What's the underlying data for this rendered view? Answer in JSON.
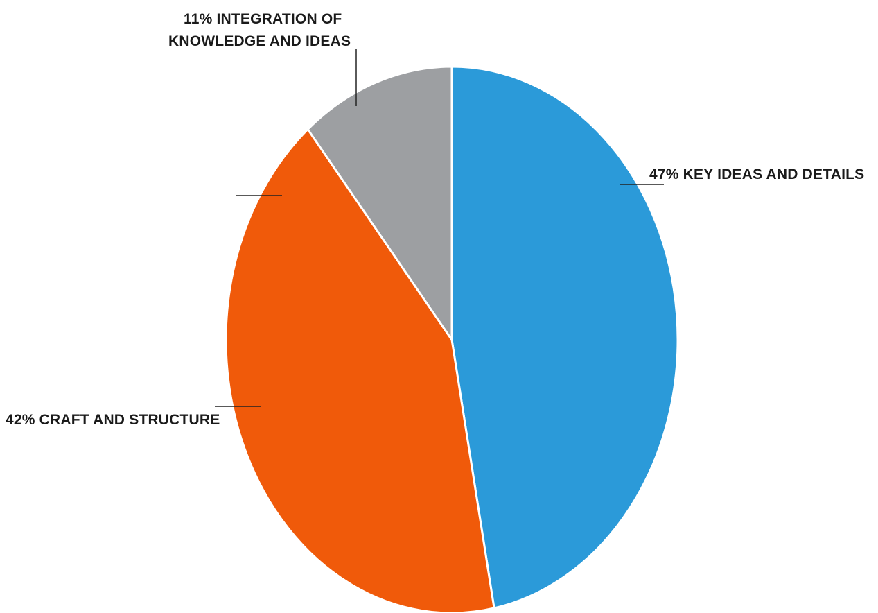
{
  "chart_data": {
    "type": "pie",
    "title": "",
    "slices": [
      {
        "label": "KEY IDEAS AND DETAILS",
        "percent_label": "47%",
        "value": 47,
        "color": "#2b9ad9"
      },
      {
        "label": "CRAFT AND STRUCTURE",
        "percent_label": "42%",
        "value": 42,
        "color": "#f05a0a"
      },
      {
        "label": "INTEGRATION OF KNOWLEDGE AND IDEAS",
        "percent_label": "11%",
        "value": 11,
        "color": "#9d9fa2"
      }
    ],
    "start_angle": "12 o'clock",
    "direction": "clockwise"
  },
  "labels": {
    "key_ideas": "47% KEY IDEAS AND DETAILS",
    "craft": "42% CRAFT AND STRUCTURE",
    "integration_line1": "11% INTEGRATION OF",
    "integration_line2": "KNOWLEDGE AND IDEAS"
  }
}
